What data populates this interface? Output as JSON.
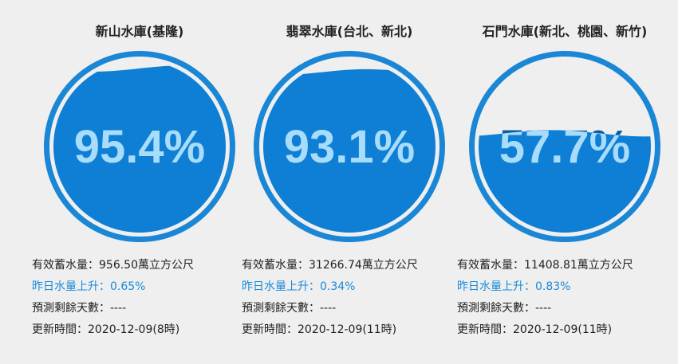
{
  "colors": {
    "background": "#efefef",
    "ring": "#1a86d6",
    "water": "#0e7fd4",
    "percent_on_water": "#a8dcfb",
    "percent_on_empty": "#0b5fa0",
    "rise_text": "#1a8ad8"
  },
  "reservoirs": [
    {
      "name": "新山水庫(基隆)",
      "percent_label": "95.4%",
      "fill_level": 0.954,
      "storage": "有效蓄水量：956.50萬立方公尺",
      "change": "昨日水量上升：0.65%",
      "forecast": "預測剩餘天數：----",
      "updated": "更新時間：2020-12-09(8時)"
    },
    {
      "name": "翡翠水庫(台北、新北)",
      "percent_label": "93.1%",
      "fill_level": 0.931,
      "storage": "有效蓄水量：31266.74萬立方公尺",
      "change": "昨日水量上升：0.34%",
      "forecast": "預測剩餘天數：----",
      "updated": "更新時間：2020-12-09(11時)"
    },
    {
      "name": "石門水庫(新北、桃園、新竹)",
      "percent_label": "57.7%",
      "fill_level": 0.577,
      "storage": "有效蓄水量：11408.81萬立方公尺",
      "change": "昨日水量上升：0.83%",
      "forecast": "預測剩餘天數：----",
      "updated": "更新時間：2020-12-09(11時)"
    }
  ]
}
